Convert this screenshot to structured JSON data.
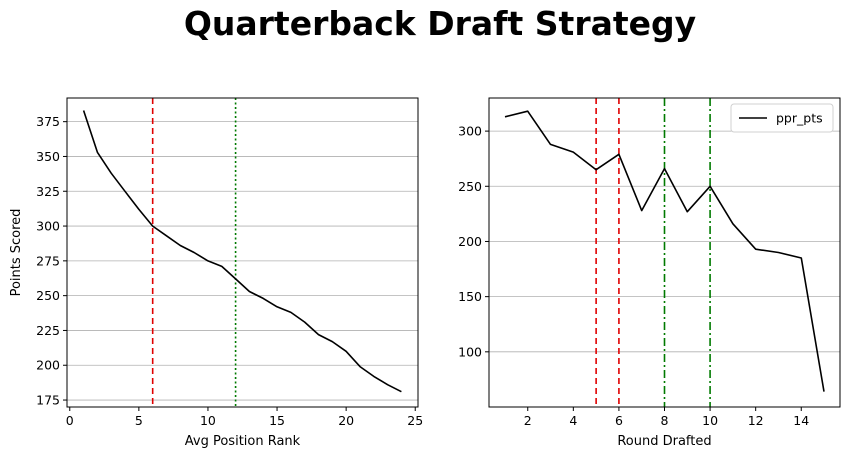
{
  "figure": {
    "title": "Quarterback Draft Strategy"
  },
  "colors": {
    "line": "#000000",
    "red": "#e00000",
    "green": "#007a00",
    "grid": "#b0b0b0"
  },
  "chart_data": [
    {
      "type": "line",
      "xlabel": "Avg Position Rank",
      "ylabel": "Points Scored",
      "xlim": [
        -0.2,
        25.2
      ],
      "ylim": [
        170,
        392
      ],
      "xticks": [
        0,
        5,
        10,
        15,
        20,
        25
      ],
      "yticks": [
        175,
        200,
        225,
        250,
        275,
        300,
        325,
        350,
        375
      ],
      "grid": "horizontal",
      "legend": "none",
      "series": [
        {
          "x": [
            1,
            2,
            3,
            4,
            5,
            6,
            7,
            8,
            9,
            10,
            11,
            12,
            13,
            14,
            15,
            16,
            17,
            18,
            19,
            20,
            21,
            22,
            23,
            24
          ],
          "y": [
            383,
            353,
            338,
            325,
            312,
            300,
            293,
            286,
            281,
            275,
            271,
            262,
            253,
            248,
            242,
            238,
            231,
            222,
            217,
            210,
            199,
            192,
            186,
            181
          ]
        }
      ],
      "vlines": [
        {
          "x": 6,
          "color": "red",
          "style": "dashed"
        },
        {
          "x": 12,
          "color": "green",
          "style": "dotted"
        }
      ]
    },
    {
      "type": "line",
      "xlabel": "Round Drafted",
      "ylabel": "",
      "xlim": [
        0.3,
        15.7
      ],
      "ylim": [
        50,
        330
      ],
      "xticks": [
        2,
        4,
        6,
        8,
        10,
        12,
        14
      ],
      "yticks": [
        100,
        150,
        200,
        250,
        300
      ],
      "grid": "horizontal",
      "legend": "top-right",
      "series": [
        {
          "name": "ppr_pts",
          "x": [
            1,
            2,
            3,
            4,
            5,
            6,
            7,
            8,
            9,
            10,
            11,
            12,
            13,
            14,
            15
          ],
          "y": [
            313,
            318,
            288,
            281,
            265,
            279,
            228,
            266,
            227,
            250,
            216,
            193,
            190,
            185,
            64
          ]
        }
      ],
      "vlines": [
        {
          "x": 5,
          "color": "red",
          "style": "dashed"
        },
        {
          "x": 6,
          "color": "red",
          "style": "dashed"
        },
        {
          "x": 8,
          "color": "green",
          "style": "dashdot"
        },
        {
          "x": 10,
          "color": "green",
          "style": "dashdot"
        }
      ]
    }
  ]
}
